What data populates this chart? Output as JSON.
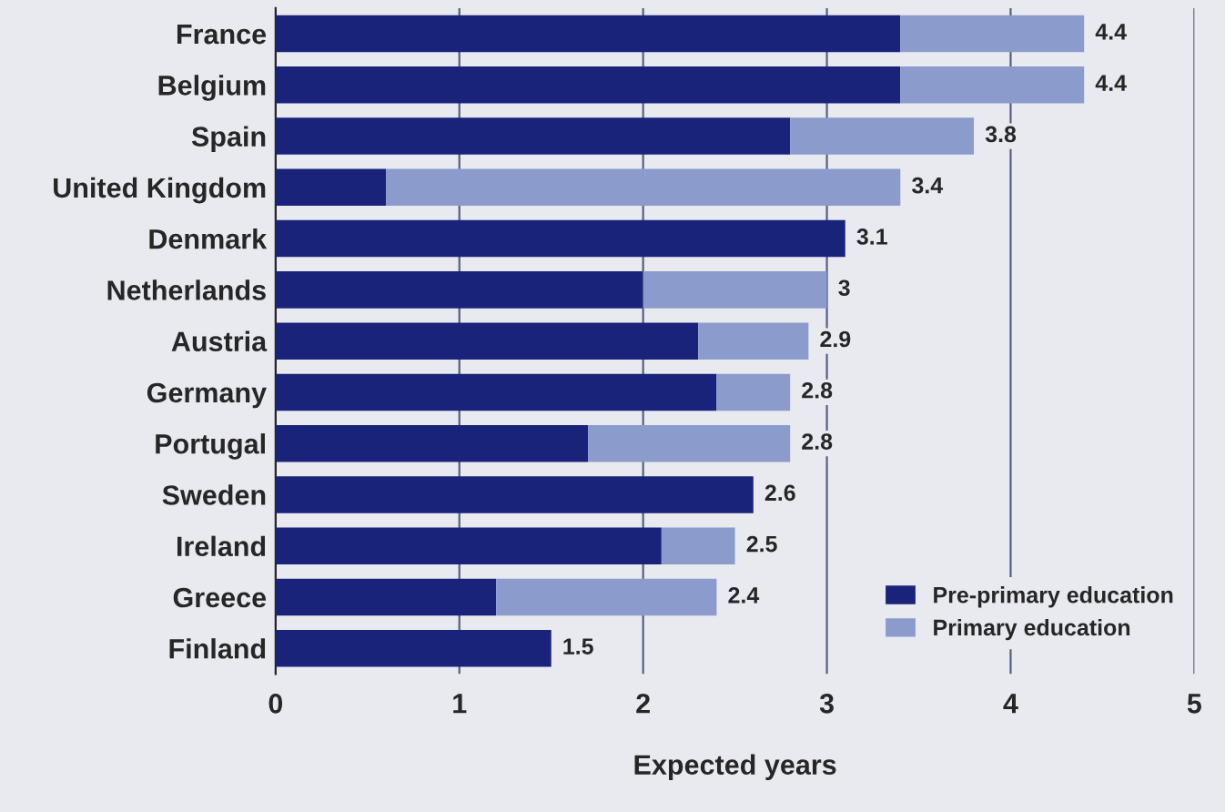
{
  "chart_data": {
    "type": "bar",
    "orientation": "horizontal",
    "stacked": true,
    "xlabel": "Expected years",
    "categories": [
      "France",
      "Belgium",
      "Spain",
      "United Kingdom",
      "Denmark",
      "Netherlands",
      "Austria",
      "Germany",
      "Portugal",
      "Sweden",
      "Ireland",
      "Greece",
      "Finland"
    ],
    "series": [
      {
        "name": "Pre-primary education",
        "color": "#1a237a",
        "values": [
          3.4,
          3.4,
          2.8,
          0.6,
          3.1,
          2.0,
          2.3,
          2.4,
          1.7,
          2.6,
          2.1,
          1.2,
          1.5
        ]
      },
      {
        "name": "Primary education",
        "color": "#8b9bcc",
        "values": [
          1.0,
          1.0,
          1.0,
          2.8,
          null,
          1.0,
          0.6,
          0.4,
          1.1,
          null,
          0.4,
          1.2,
          null
        ]
      }
    ],
    "totals": [
      "4.4",
      "4.4",
      "3.8",
      "3.4",
      "3.1",
      "3",
      "2.9",
      "2.8",
      "2.8",
      "2.6",
      "2.5",
      "2.4",
      "1.5"
    ],
    "xlim": [
      0,
      5
    ],
    "xticks": [
      0,
      1,
      2,
      3,
      4,
      5
    ],
    "grid": "x",
    "legend": "bottom right"
  }
}
